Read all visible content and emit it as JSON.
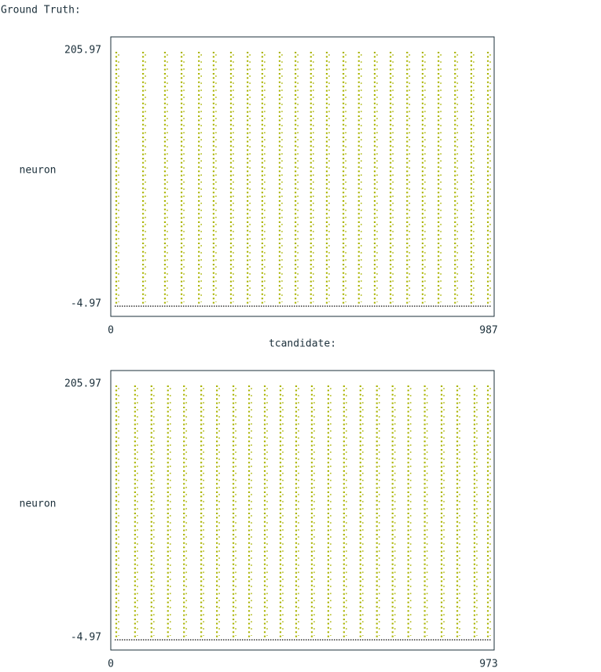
{
  "heading": "Ground Truth:",
  "chart_data": [
    {
      "type": "eventplot",
      "ylabel": "neuron",
      "xlabel": "tcandidate:",
      "color": "#aab400",
      "x": [
        0,
        71,
        129,
        173,
        219,
        258,
        304,
        348,
        387,
        433,
        475,
        516,
        558,
        602,
        643,
        685,
        727,
        771,
        812,
        854,
        898,
        941,
        985
      ],
      "xlim": [
        0,
        987
      ],
      "xticks": [
        0,
        987
      ],
      "ylim": [
        -4.97,
        205.97
      ],
      "yticks": [
        -4.97,
        205.97
      ]
    },
    {
      "type": "eventplot",
      "ylabel": "neuron",
      "color": "#aab400",
      "x": [
        0,
        49,
        92,
        135,
        177,
        222,
        263,
        306,
        347,
        388,
        429,
        470,
        511,
        554,
        595,
        638,
        681,
        722,
        763,
        806,
        850,
        891,
        936,
        971
      ],
      "xlim": [
        0,
        973
      ],
      "xticks": [
        0,
        973
      ],
      "ylim": [
        -4.97,
        205.97
      ],
      "yticks": [
        -4.97,
        205.97
      ]
    }
  ]
}
